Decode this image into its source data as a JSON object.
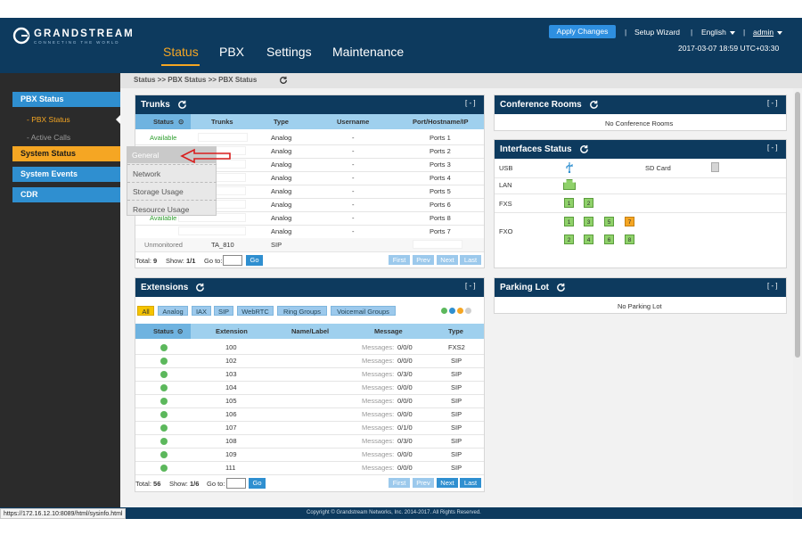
{
  "header": {
    "brand": "GRANDSTREAM",
    "tagline": "CONNECTING THE WORLD",
    "apply_changes": "Apply Changes",
    "separator": "|",
    "setup_wizard": "Setup Wizard",
    "language": "English",
    "user": "admin",
    "datetime": "2017-03-07 18:59 UTC+03:30",
    "nav": [
      "Status",
      "PBX",
      "Settings",
      "Maintenance"
    ],
    "active_nav": "Status"
  },
  "sidebar": {
    "pbx_status": "PBX Status",
    "sub_pbx_status": "- PBX Status",
    "sub_active_calls": "- Active Calls",
    "system_status": "System Status",
    "system_events": "System Events",
    "cdr": "CDR"
  },
  "flyout": {
    "items": [
      "General",
      "Network",
      "Storage Usage",
      "Resource Usage"
    ]
  },
  "breadcrumb": "Status >> PBX Status >> PBX Status",
  "trunks": {
    "title": "Trunks",
    "collapse": "[ - ]",
    "columns": [
      "Status",
      "Trunks",
      "Type",
      "Username",
      "Port/Hostname/IP"
    ],
    "rows": [
      {
        "status": "Available",
        "trunk": "",
        "type": "Analog",
        "username": "-",
        "port": "Ports 1"
      },
      {
        "status": "",
        "trunk": "",
        "type": "Analog",
        "username": "-",
        "port": "Ports 2"
      },
      {
        "status": "",
        "trunk": "",
        "type": "Analog",
        "username": "-",
        "port": "Ports 3"
      },
      {
        "status": "",
        "trunk": "",
        "type": "Analog",
        "username": "-",
        "port": "Ports 4"
      },
      {
        "status": "",
        "trunk": "",
        "type": "Analog",
        "username": "-",
        "port": "Ports 5"
      },
      {
        "status": "",
        "trunk": "",
        "type": "Analog",
        "username": "-",
        "port": "Ports 6"
      },
      {
        "status": "Available",
        "trunk": "",
        "type": "Analog",
        "username": "-",
        "port": "Ports 8"
      },
      {
        "status": "",
        "trunk": "",
        "type": "Analog",
        "username": "-",
        "port": "Ports 7"
      },
      {
        "status": "Unmonitored",
        "trunk": "TA_810",
        "type": "SIP",
        "username": "",
        "port": ""
      }
    ],
    "total_label": "Total:",
    "total": "9",
    "show_label": "Show:",
    "show": "1/1",
    "goto_label": "Go to:",
    "go": "Go",
    "pager": [
      "First",
      "Prev",
      "Next",
      "Last"
    ]
  },
  "extensions": {
    "title": "Extensions",
    "collapse": "[ - ]",
    "filters": [
      "All",
      "Analog",
      "IAX",
      "SIP",
      "WebRTC",
      "Ring Groups",
      "Voicemail Groups"
    ],
    "active_filter": "All",
    "columns": [
      "Status",
      "Extension",
      "Name/Label",
      "Message",
      "Type"
    ],
    "rows": [
      {
        "ext": "100",
        "msg_label": "Messages:",
        "msg": "0/0/0",
        "type": "FXS2"
      },
      {
        "ext": "102",
        "msg_label": "Messages:",
        "msg": "0/0/0",
        "type": "SIP"
      },
      {
        "ext": "103",
        "msg_label": "Messages:",
        "msg": "0/3/0",
        "type": "SIP"
      },
      {
        "ext": "104",
        "msg_label": "Messages:",
        "msg": "0/0/0",
        "type": "SIP"
      },
      {
        "ext": "105",
        "msg_label": "Messages:",
        "msg": "0/0/0",
        "type": "SIP"
      },
      {
        "ext": "106",
        "msg_label": "Messages:",
        "msg": "0/0/0",
        "type": "SIP"
      },
      {
        "ext": "107",
        "msg_label": "Messages:",
        "msg": "0/1/0",
        "type": "SIP"
      },
      {
        "ext": "108",
        "msg_label": "Messages:",
        "msg": "0/3/0",
        "type": "SIP"
      },
      {
        "ext": "109",
        "msg_label": "Messages:",
        "msg": "0/0/0",
        "type": "SIP"
      },
      {
        "ext": "111",
        "msg_label": "Messages:",
        "msg": "0/0/0",
        "type": "SIP"
      }
    ],
    "total_label": "Total:",
    "total": "56",
    "show_label": "Show:",
    "show": "1/6",
    "goto_label": "Go to:",
    "go": "Go",
    "pager": [
      "First",
      "Prev",
      "Next",
      "Last"
    ],
    "status_color": "#5cb85c"
  },
  "conference": {
    "title": "Conference Rooms",
    "collapse": "[ - ]",
    "empty": "No Conference Rooms"
  },
  "interfaces": {
    "title": "Interfaces Status",
    "collapse": "[ - ]",
    "usb": "USB",
    "sd_card": "SD Card",
    "lan": "LAN",
    "fxs": "FXS",
    "fxs_ports": [
      "1",
      "2"
    ],
    "fxo": "FXO",
    "fxo_ports_row1": [
      "1",
      "3",
      "5",
      "7"
    ],
    "fxo_ports_row2": [
      "2",
      "4",
      "6",
      "8"
    ],
    "port_color_active": "#8fd16a",
    "port_color_alert": "#f5a623",
    "alert_port": "7"
  },
  "parking": {
    "title": "Parking Lot",
    "collapse": "[ - ]",
    "empty": "No Parking Lot"
  },
  "footer": {
    "copyright": "Copyright © Grandstream Networks, Inc. 2014-2017. All Rights Reserved.",
    "status_url": "https://172.16.12.10:8089/html/sysinfo.html"
  }
}
